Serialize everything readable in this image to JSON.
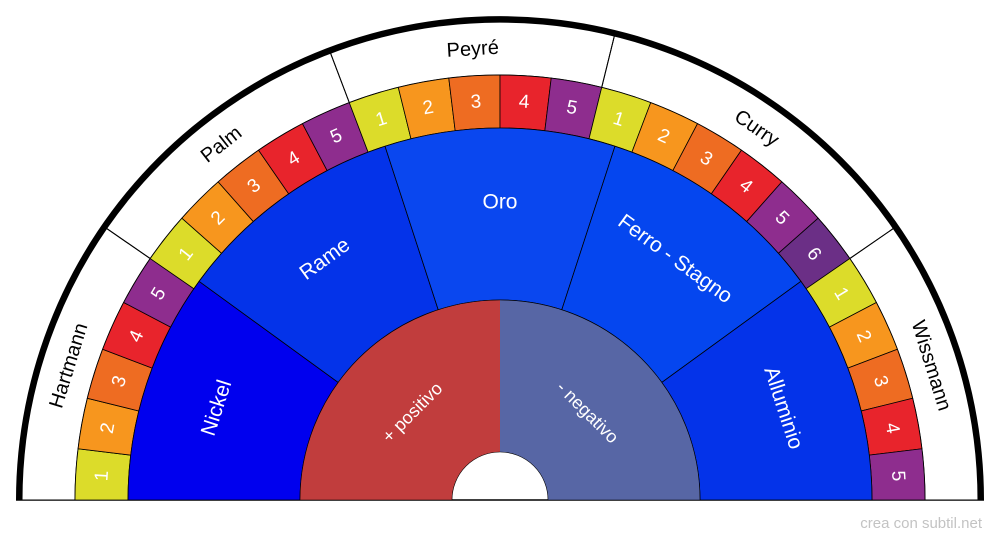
{
  "chart_data": {
    "type": "semicircle-pendulum-dial",
    "inner": {
      "positive": {
        "label": "+ positivo",
        "color": "#c13d3d"
      },
      "negative": {
        "label": "- negativo",
        "color": "#5766a5"
      }
    },
    "metals": [
      {
        "label": "Nickel",
        "color": "#0000ee"
      },
      {
        "label": "Rame",
        "color": "#0433e9"
      },
      {
        "label": "Oro",
        "color": "#0a47ef"
      },
      {
        "label": "Ferro - Stagno",
        "color": "#0546ef"
      },
      {
        "label": "Alluminio",
        "color": "#0433e9"
      }
    ],
    "scales": [
      {
        "name": "Hartmann",
        "values": [
          "1",
          "2",
          "3",
          "4",
          "5"
        ]
      },
      {
        "name": "Palm",
        "values": [
          "1",
          "2",
          "3",
          "4",
          "5"
        ]
      },
      {
        "name": "Peyré",
        "values": [
          "1",
          "2",
          "3",
          "4",
          "5"
        ]
      },
      {
        "name": "Curry",
        "values": [
          "1",
          "2",
          "3",
          "4",
          "5",
          "6"
        ]
      },
      {
        "name": "Wissmann",
        "values": [
          "1",
          "2",
          "3",
          "4",
          "5"
        ]
      }
    ],
    "ring_colors": [
      "#dcdc2a",
      "#f7961e",
      "#ee6c22",
      "#e8242c",
      "#8e2d8e",
      "#6b2f86"
    ],
    "rim_color": "#000000"
  },
  "credit": "crea con subtil.net"
}
